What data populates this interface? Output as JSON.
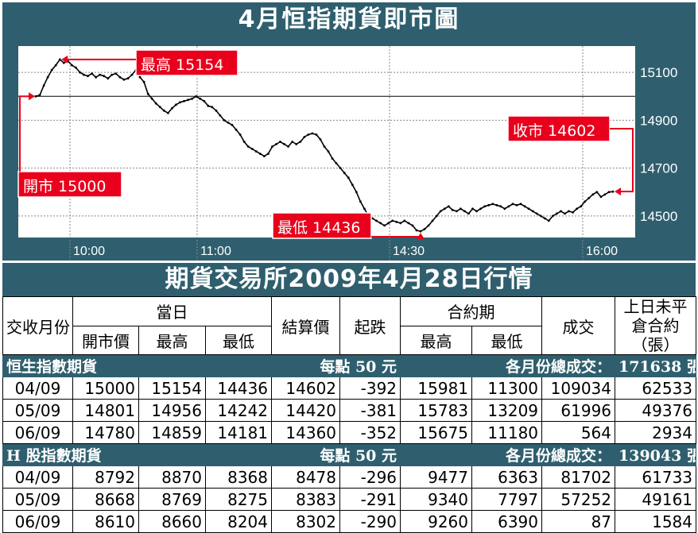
{
  "chart_title": "4月恒指期貨即市圖",
  "chart_data": {
    "type": "line",
    "title": "4月恒指期貨即市圖",
    "xlabel": "",
    "ylabel": "",
    "x_ticks": [
      "10:00",
      "11:00",
      "14:30",
      "16:00"
    ],
    "y_ticks": [
      15100,
      14900,
      14700,
      14500
    ],
    "ylim": [
      14410,
      15210
    ],
    "grid": true,
    "color": "#000000",
    "annotations": {
      "open": {
        "label": "開市 15000",
        "value": 15000
      },
      "high": {
        "label": "最高 15154",
        "value": 15154
      },
      "low": {
        "label": "最低 14436",
        "value": 14436
      },
      "close": {
        "label": "收市 14602",
        "value": 14602
      }
    },
    "series": [
      {
        "values": [
          15000,
          15005,
          15045,
          15080,
          15110,
          15130,
          15154,
          15140,
          15148,
          15130,
          15120,
          15100,
          15090,
          15085,
          15095,
          15080,
          15090,
          15085,
          15075,
          15090,
          15095,
          15080,
          15070,
          15075,
          15090,
          15110,
          15080,
          15060,
          15010,
          14990,
          14970,
          14955,
          14940,
          14930,
          14950,
          14965,
          14975,
          14980,
          14985,
          14990,
          15000,
          14990,
          14980,
          14960,
          14955,
          14940,
          14920,
          14900,
          14890,
          14880,
          14860,
          14840,
          14810,
          14790,
          14780,
          14770,
          14760,
          14750,
          14760,
          14790,
          14800,
          14810,
          14800,
          14790,
          14810,
          14800,
          14810,
          14830,
          14840,
          14845,
          14840,
          14820,
          14790,
          14770,
          14740,
          14720,
          14700,
          14680,
          14660,
          14630,
          14600,
          14560,
          14530,
          14500,
          14490,
          14480,
          14470,
          14460,
          14470,
          14480,
          14475,
          14470,
          14480,
          14470,
          14460,
          14440,
          14436,
          14445,
          14460,
          14480,
          14500,
          14520,
          14530,
          14540,
          14525,
          14520,
          14530,
          14520,
          14510,
          14530,
          14520,
          14530,
          14540,
          14545,
          14550,
          14545,
          14540,
          14530,
          14540,
          14550,
          14545,
          14550,
          14540,
          14530,
          14520,
          14510,
          14500,
          14490,
          14480,
          14500,
          14510,
          14520,
          14510,
          14520,
          14515,
          14530,
          14540,
          14560,
          14575,
          14590,
          14600,
          14580,
          14590,
          14600,
          14602
        ]
      }
    ]
  },
  "table_title": "期貨交易所2009年4月28日行情",
  "table": {
    "headers": {
      "month": "交收月份",
      "day": "當日",
      "open": "開市價",
      "high": "最高",
      "low": "最低",
      "settle": "結算價",
      "change": "起跌",
      "contract": "合約期",
      "c_high": "最高",
      "c_low": "最低",
      "volume": "成交",
      "oi": "上日未平倉合約（張）"
    },
    "sections": [
      {
        "name": "恒生指數期貨",
        "unit": "每點 50 元",
        "total_label": "各月份總成交：",
        "total": "171638 張",
        "rows": [
          [
            "04/09",
            "15000",
            "15154",
            "14436",
            "14602",
            "-392",
            "15981",
            "11300",
            "109034",
            "62533"
          ],
          [
            "05/09",
            "14801",
            "14956",
            "14242",
            "14420",
            "-381",
            "15783",
            "13209",
            "61996",
            "49376"
          ],
          [
            "06/09",
            "14780",
            "14859",
            "14181",
            "14360",
            "-352",
            "15675",
            "11180",
            "564",
            "2934"
          ]
        ]
      },
      {
        "name": "H 股指數期貨",
        "unit": "每點 50 元",
        "total_label": "各月份總成交：",
        "total": "139043 張",
        "rows": [
          [
            "04/09",
            "8792",
            "8870",
            "8368",
            "8478",
            "-296",
            "9477",
            "6363",
            "81702",
            "61733"
          ],
          [
            "05/09",
            "8668",
            "8769",
            "8275",
            "8383",
            "-291",
            "9340",
            "7797",
            "57252",
            "49161"
          ],
          [
            "06/09",
            "8610",
            "8660",
            "8204",
            "8302",
            "-290",
            "9260",
            "6390",
            "87",
            "1584"
          ]
        ]
      }
    ]
  },
  "colors": {
    "panel": "#2f5f6e",
    "annotation": "#e8001c",
    "plot_bg": "#ffffff",
    "section_text": "#ffffff"
  }
}
